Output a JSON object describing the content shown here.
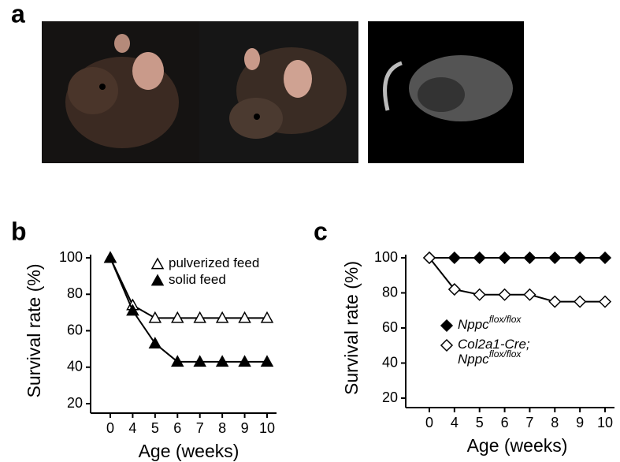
{
  "panel_a": {
    "label": "a"
  },
  "chart_data": [
    {
      "type": "line",
      "panel_label": "b",
      "ylabel": "Survival rate (%)",
      "xlabel": "Age (weeks)",
      "categories": [
        "0",
        "4",
        "5",
        "6",
        "7",
        "8",
        "9",
        "10"
      ],
      "ylim": [
        20,
        100
      ],
      "yticks": [
        20,
        40,
        60,
        80,
        100
      ],
      "legend": "upper right",
      "series": [
        {
          "name": "pulverized feed",
          "color": "#000000",
          "marker": "triangle",
          "filled": false,
          "values": [
            100,
            74,
            67,
            67,
            67,
            67,
            67,
            67
          ]
        },
        {
          "name": "solid feed",
          "color": "#000000",
          "marker": "triangle",
          "filled": true,
          "values": [
            100,
            71,
            53,
            43,
            43,
            43,
            43,
            43
          ]
        }
      ]
    },
    {
      "type": "line",
      "panel_label": "c",
      "ylabel": "Survival rate (%)",
      "xlabel": "Age (weeks)",
      "categories": [
        "0",
        "4",
        "5",
        "6",
        "7",
        "8",
        "9",
        "10"
      ],
      "ylim": [
        20,
        100
      ],
      "yticks": [
        20,
        40,
        60,
        80,
        100
      ],
      "legend": "center",
      "series": [
        {
          "name": "Nppc",
          "name_superscript": "flox/flox",
          "color": "#000000",
          "marker": "diamond",
          "filled": true,
          "values": [
            100,
            100,
            100,
            100,
            100,
            100,
            100,
            100
          ]
        },
        {
          "name": "Col2a1-Cre;",
          "name_line2": "Nppc",
          "name_superscript": "flox/flox",
          "color": "#000000",
          "marker": "diamond",
          "filled": false,
          "values": [
            100,
            82,
            79,
            79,
            79,
            75,
            75,
            75
          ]
        }
      ]
    }
  ]
}
